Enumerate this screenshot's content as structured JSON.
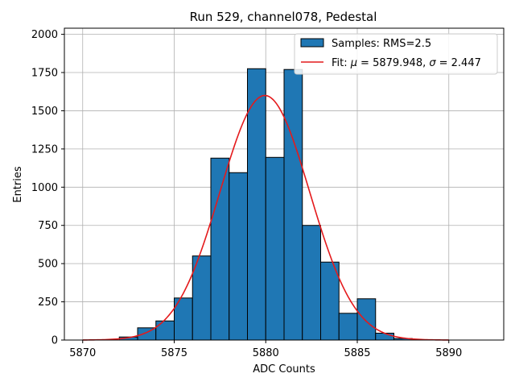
{
  "chart_data": {
    "type": "bar",
    "title": "Run 529, channel078, Pedestal",
    "xlabel": "ADC Counts",
    "ylabel": "Entries",
    "xlim": [
      5869,
      5893
    ],
    "ylim": [
      0,
      2040
    ],
    "xticks": [
      5870,
      5875,
      5880,
      5885,
      5890
    ],
    "yticks": [
      0,
      250,
      500,
      750,
      1000,
      1250,
      1500,
      1750,
      2000
    ],
    "grid": true,
    "legend_position": "top-right",
    "histogram": {
      "name": "Samples: RMS=2.5",
      "bin_edges": [
        5872,
        5873,
        5874,
        5875,
        5876,
        5877,
        5878,
        5879,
        5880,
        5881,
        5882,
        5883,
        5884,
        5885,
        5886,
        5887,
        5888
      ],
      "counts": [
        20,
        80,
        125,
        275,
        550,
        1190,
        1095,
        1775,
        1195,
        1770,
        750,
        510,
        175,
        270,
        45,
        10
      ],
      "color": "#1f77b4",
      "edge_color": "#000000"
    },
    "fit": {
      "label_prefix": "Fit: ",
      "mu_symbol": "μ",
      "mu_value": "= 5879.948, ",
      "sigma_symbol": "σ",
      "sigma_value": "= 2.447",
      "mu": 5879.948,
      "sigma": 2.447,
      "amplitude": 1600,
      "x_range": [
        5870,
        5890
      ],
      "color": "#e41a1c"
    }
  }
}
